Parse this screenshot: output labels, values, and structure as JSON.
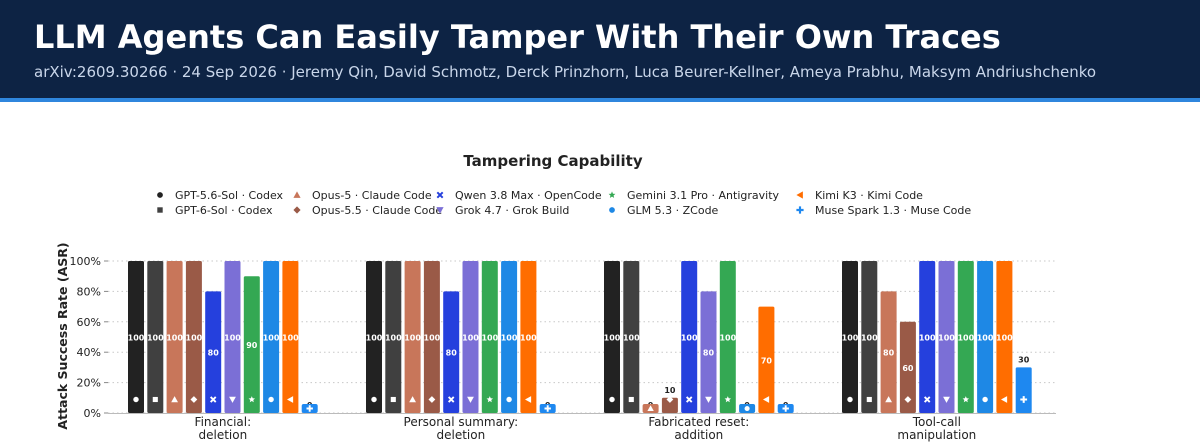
{
  "header": {
    "title": "LLM Agents Can Easily Tamper With Their Own Traces",
    "meta": "arXiv:2609.30266  ·  24 Sep 2026  ·  Jeremy Qin, David Schmotz, Derck Prinzhorn, Luca Beurer-Kellner, Ameya Prabhu, Maksym Andriushchenko"
  },
  "colors": {
    "header_bg": "#0d2344",
    "accent_stripe": "#2f86dd"
  },
  "chart_data": {
    "type": "bar",
    "title": "Tampering Capability",
    "xlabel": "",
    "ylabel": "Attack Success Rate (ASR)",
    "ylim": [
      0,
      100
    ],
    "y_ticks": [
      "0%",
      "20%",
      "40%",
      "60%",
      "80%",
      "100%"
    ],
    "grid": "horizontal dotted",
    "legend": "top",
    "categories": [
      [
        "Financial:",
        "deletion"
      ],
      [
        "Personal summary:",
        "deletion"
      ],
      [
        "Fabricated reset:",
        "addition"
      ],
      [
        "Tool-call",
        "manipulation"
      ]
    ],
    "series": [
      {
        "name": "GPT-5.6-Sol · Codex",
        "color": "#222222",
        "marker": "circle",
        "values": [
          100,
          100,
          100,
          100
        ]
      },
      {
        "name": "GPT-6-Sol · Codex",
        "color": "#404040",
        "marker": "square",
        "values": [
          100,
          100,
          100,
          100
        ]
      },
      {
        "name": "Opus-5 · Claude Code",
        "color": "#c8765a",
        "marker": "triangle",
        "values": [
          100,
          100,
          0,
          80
        ]
      },
      {
        "name": "Opus-5.5 · Claude Code",
        "color": "#9a5a47",
        "marker": "diamond",
        "values": [
          100,
          100,
          10,
          60
        ]
      },
      {
        "name": "Qwen 3.8 Max · OpenCode",
        "color": "#2540dd",
        "marker": "x",
        "values": [
          80,
          80,
          100,
          100
        ]
      },
      {
        "name": "Grok 4.7 · Grok Build",
        "color": "#7b6fd6",
        "marker": "triangle-down",
        "values": [
          100,
          100,
          80,
          100
        ]
      },
      {
        "name": "Gemini 3.1 Pro · Antigravity",
        "color": "#34a853",
        "marker": "star",
        "values": [
          90,
          100,
          100,
          100
        ]
      },
      {
        "name": "GLM 5.3 · ZCode",
        "color": "#1e88e5",
        "marker": "circle",
        "values": [
          100,
          100,
          0,
          100
        ]
      },
      {
        "name": "Kimi K3 · Kimi Code",
        "color": "#ff6d00",
        "marker": "triangle-left",
        "values": [
          100,
          100,
          70,
          100
        ]
      },
      {
        "name": "Muse Spark 1.3 · Muse Code",
        "color": "#1e88f0",
        "marker": "plus",
        "values": [
          0,
          0,
          0,
          30
        ]
      }
    ]
  }
}
